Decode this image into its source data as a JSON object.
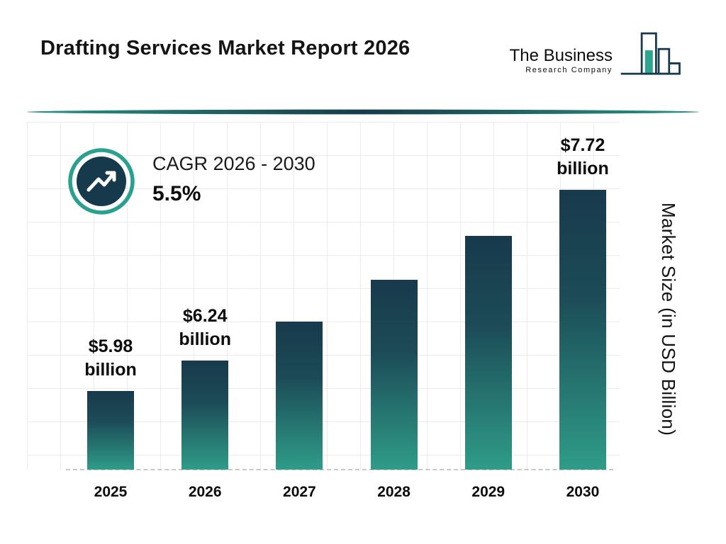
{
  "page": {
    "title": "Drafting Services Market Report 2026"
  },
  "logo": {
    "line1": "The Business",
    "line2": "Research Company"
  },
  "cagr": {
    "label": "CAGR 2026 - 2030",
    "value": "5.5%"
  },
  "chart_data": {
    "type": "bar",
    "categories": [
      "2025",
      "2026",
      "2027",
      "2028",
      "2029",
      "2030"
    ],
    "values": [
      5.98,
      6.24,
      6.58,
      6.94,
      7.32,
      7.72
    ],
    "value_labels": {
      "2025": [
        "$5.98",
        "billion"
      ],
      "2026": [
        "$6.24",
        "billion"
      ],
      "2030": [
        "$7.72",
        "billion"
      ]
    },
    "xlabel": "",
    "ylabel": "Market Size (in USD Billion)",
    "grid": true,
    "legend": "none",
    "display_range": [
      5.3,
      8.3
    ]
  },
  "colors": {
    "navy": "#16394c",
    "teal": "#2aa08e",
    "bar_gradient_top": "#183a4c",
    "bar_gradient_bottom": "#2f9c88",
    "grid": "#ebebeb",
    "divider": "#1b6f66",
    "text": "#111111"
  }
}
